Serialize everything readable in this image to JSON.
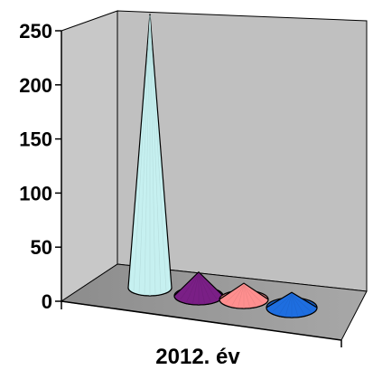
{
  "chart_data": {
    "type": "bar",
    "subtype": "3d-cone",
    "categories": [
      "2012. év"
    ],
    "series": [
      {
        "values": [
          253
        ],
        "color": "#c6f0f0"
      },
      {
        "values": [
          22
        ],
        "color": "#7a1f86"
      },
      {
        "values": [
          15
        ],
        "color": "#ff8f8f"
      },
      {
        "values": [
          14
        ],
        "color": "#1e6ee0"
      }
    ],
    "ylim": [
      0,
      250
    ],
    "yticks": [
      "0",
      "50",
      "100",
      "150",
      "200",
      "250"
    ],
    "xlabel": "",
    "ylabel": "",
    "grid": false,
    "legend": "none"
  }
}
